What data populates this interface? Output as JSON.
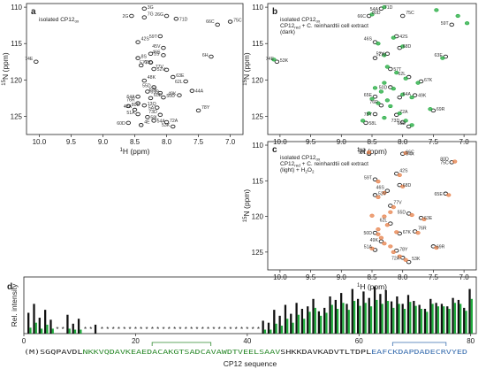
{
  "panels": {
    "a": {
      "letter": "a",
      "legend": [
        {
          "text": "isolated CP12",
          "sub": "ox",
          "color": "#222222"
        }
      ],
      "ppm_labels": [
        "74E",
        "3G",
        "2G",
        "7G",
        "26G",
        "71D",
        "66C",
        "75C",
        "59T",
        "42S",
        "45V",
        "1S",
        "46S",
        "8S",
        "57T",
        "68D",
        "6H",
        "52V",
        "77V",
        "63E",
        "62L",
        "48K",
        "55D",
        "69R",
        "67K",
        "50D",
        "64A",
        "65E",
        "49K",
        "44A",
        "76R",
        "13Q",
        "5A",
        "78Y",
        "51A",
        "58L",
        "73D",
        "72A",
        "60D",
        "4E",
        "53K",
        "54A",
        "43A",
        "80D"
      ]
    },
    "b": {
      "letter": "b",
      "legend": [
        {
          "text": "isolated CP12",
          "sub": "ox",
          "color": "#222222"
        },
        {
          "text": "CP12",
          "sub": "red",
          "tail": " + C. reinhardtii cell extract",
          "color": "#1faa3c"
        },
        {
          "text": "(dark)",
          "color": "#1faa3c"
        }
      ],
      "ppm_labels": [
        "74E",
        "71D",
        "66C",
        "75C",
        "59T",
        "42S",
        "46S",
        "68D",
        "52V",
        "77V",
        "63E",
        "57T",
        "62L",
        "67K",
        "50D",
        "64A",
        "65E",
        "49K",
        "76R",
        "69R",
        "78Y",
        "72A",
        "73D",
        "58L",
        "60D",
        "53K",
        "54A",
        "80D"
      ]
    },
    "c": {
      "letter": "c",
      "legend": [
        {
          "text": "isolated CP12",
          "sub": "ox",
          "color": "#222222"
        },
        {
          "text": "CP12",
          "sub": "red",
          "tail": " + C. reinhardtii cell extract",
          "color": "#e7814b"
        },
        {
          "text": "(light) + H",
          "sub": "2",
          "tail": "O",
          "sub2": "2",
          "color": "#e7814b"
        }
      ],
      "ppm_labels": [
        "71D",
        "66C",
        "75C",
        "42S",
        "59T",
        "68D",
        "46S",
        "52V",
        "65E",
        "77V",
        "55D",
        "63E",
        "62L",
        "67K",
        "50D",
        "76R",
        "49K",
        "69R",
        "51A",
        "78Y",
        "72A",
        "53K",
        "58L",
        "54A",
        "80D"
      ]
    }
  },
  "chart_data": [
    {
      "type": "scatter",
      "panel": "a",
      "xlabel": "1H (ppm)",
      "ylabel": "15N (ppm)",
      "xlim": [
        10.2,
        6.8
      ],
      "ylim": [
        127.5,
        109.5
      ],
      "x_ticks": [
        10.0,
        9.5,
        9.0,
        8.5,
        8.0,
        7.5,
        7.0
      ],
      "y_ticks": [
        110,
        115,
        120,
        125
      ],
      "series": [
        {
          "color": "#222222",
          "points": [
            [
              10.05,
              117.5
            ],
            [
              8.35,
              110.2
            ],
            [
              8.55,
              111.2
            ],
            [
              8.35,
              111.4
            ],
            [
              8.0,
              111.2
            ],
            [
              7.85,
              111.6
            ],
            [
              7.2,
              112.4
            ],
            [
              7.0,
              112.0
            ],
            [
              8.1,
              114.0
            ],
            [
              8.45,
              114.8
            ],
            [
              8.05,
              115.6
            ],
            [
              8.25,
              116.4
            ],
            [
              8.05,
              116.6
            ],
            [
              8.45,
              117.0
            ],
            [
              8.25,
              117.6
            ],
            [
              8.4,
              118.0
            ],
            [
              7.3,
              116.8
            ],
            [
              8.2,
              118.5
            ],
            [
              8.0,
              118.6
            ],
            [
              7.9,
              119.6
            ],
            [
              7.7,
              120.2
            ],
            [
              8.35,
              120.1
            ],
            [
              8.2,
              121.0
            ],
            [
              8.3,
              121.6
            ],
            [
              8.1,
              121.8
            ],
            [
              8.05,
              122.4
            ],
            [
              8.45,
              122.3
            ],
            [
              8.25,
              122.5
            ],
            [
              7.8,
              122.1
            ],
            [
              7.6,
              121.5
            ],
            [
              8.45,
              123.2
            ],
            [
              8.35,
              123.5
            ],
            [
              8.15,
              123.8
            ],
            [
              7.5,
              124.2
            ],
            [
              8.45,
              124.7
            ],
            [
              8.3,
              125.1
            ],
            [
              8.1,
              124.8
            ],
            [
              8.0,
              125.8
            ],
            [
              8.6,
              125.9
            ],
            [
              8.4,
              126.2
            ],
            [
              7.9,
              126.4
            ],
            [
              8.2,
              125.6
            ],
            [
              8.5,
              124.1
            ],
            [
              8.6,
              123.6
            ]
          ]
        }
      ]
    },
    {
      "type": "scatter",
      "panel": "b",
      "xlabel": "1H (ppm)",
      "ylabel": "15N (ppm)",
      "xlim": [
        10.2,
        6.8
      ],
      "ylim": [
        127.5,
        109.5
      ],
      "x_ticks": [
        10.0,
        9.5,
        9.0,
        8.5,
        8.0,
        7.5,
        7.0
      ],
      "y_ticks": [
        110,
        115,
        120,
        125
      ],
      "series": [
        {
          "name": "isolated CP12ox",
          "color": "#222222",
          "points": [
            [
              10.05,
              117.5
            ],
            [
              8.35,
              110.2
            ],
            [
              8.55,
              111.2
            ],
            [
              8.0,
              111.2
            ],
            [
              7.2,
              112.4
            ],
            [
              8.1,
              114.0
            ],
            [
              8.45,
              114.8
            ],
            [
              8.05,
              115.6
            ],
            [
              8.25,
              116.4
            ],
            [
              8.45,
              117.0
            ],
            [
              7.3,
              116.8
            ],
            [
              8.2,
              118.5
            ],
            [
              7.9,
              119.6
            ],
            [
              7.7,
              120.2
            ],
            [
              8.2,
              121.0
            ],
            [
              8.05,
              122.4
            ],
            [
              8.45,
              122.3
            ],
            [
              7.8,
              122.1
            ],
            [
              8.35,
              123.5
            ],
            [
              7.5,
              124.2
            ],
            [
              8.45,
              124.7
            ],
            [
              8.1,
              124.8
            ],
            [
              8.0,
              125.8
            ],
            [
              8.6,
              125.9
            ],
            [
              7.9,
              126.4
            ]
          ]
        },
        {
          "name": "CP12red + C. reinhardtii cell extract (dark)",
          "color": "#1faa3c",
          "points": [
            [
              10.1,
              117.2
            ],
            [
              8.3,
              110.0
            ],
            [
              8.5,
              111.0
            ],
            [
              7.1,
              111.2
            ],
            [
              6.95,
              112.2
            ],
            [
              7.45,
              110.4
            ],
            [
              8.15,
              114.2
            ],
            [
              8.4,
              115.0
            ],
            [
              8.0,
              115.4
            ],
            [
              8.3,
              116.6
            ],
            [
              7.35,
              117.0
            ],
            [
              8.25,
              118.2
            ],
            [
              8.1,
              119.0
            ],
            [
              7.95,
              119.8
            ],
            [
              7.75,
              120.4
            ],
            [
              8.3,
              120.4
            ],
            [
              8.15,
              121.2
            ],
            [
              8.35,
              121.6
            ],
            [
              8.0,
              122.0
            ],
            [
              8.5,
              122.6
            ],
            [
              7.85,
              122.4
            ],
            [
              8.4,
              123.2
            ],
            [
              8.2,
              123.6
            ],
            [
              7.55,
              124.0
            ],
            [
              8.55,
              124.6
            ],
            [
              8.3,
              125.2
            ],
            [
              8.05,
              124.6
            ],
            [
              7.95,
              125.6
            ],
            [
              8.65,
              125.6
            ],
            [
              7.85,
              126.2
            ],
            [
              8.25,
              122.8
            ],
            [
              8.45,
              121.1
            ]
          ]
        }
      ]
    },
    {
      "type": "scatter",
      "panel": "c",
      "xlabel": "1H (ppm)",
      "ylabel": "15N (ppm)",
      "xlim": [
        10.2,
        6.8
      ],
      "ylim": [
        127.5,
        109.5
      ],
      "x_ticks": [
        10.0,
        9.5,
        9.0,
        8.5,
        8.0,
        7.5,
        7.0
      ],
      "y_ticks": [
        110,
        115,
        120,
        125
      ],
      "series": [
        {
          "name": "isolated CP12ox",
          "color": "#222222",
          "points": [
            [
              8.55,
              111.2
            ],
            [
              8.0,
              111.2
            ],
            [
              7.2,
              112.4
            ],
            [
              8.1,
              114.0
            ],
            [
              8.45,
              114.8
            ],
            [
              8.05,
              115.6
            ],
            [
              8.25,
              116.4
            ],
            [
              8.45,
              117.0
            ],
            [
              7.3,
              116.8
            ],
            [
              8.2,
              118.5
            ],
            [
              7.9,
              119.6
            ],
            [
              7.7,
              120.2
            ],
            [
              8.2,
              121.0
            ],
            [
              8.05,
              122.4
            ],
            [
              8.45,
              122.3
            ],
            [
              7.8,
              122.1
            ],
            [
              8.35,
              123.5
            ],
            [
              7.5,
              124.2
            ],
            [
              8.45,
              124.7
            ],
            [
              8.1,
              124.8
            ],
            [
              8.0,
              125.8
            ],
            [
              7.9,
              126.4
            ]
          ]
        },
        {
          "name": "CP12red + C. reinhardtii cell extract (light) + H2O2",
          "color": "#e7814b",
          "points": [
            [
              8.55,
              111.0
            ],
            [
              7.95,
              111.1
            ],
            [
              7.15,
              112.3
            ],
            [
              8.05,
              114.2
            ],
            [
              8.4,
              115.1
            ],
            [
              8.0,
              115.8
            ],
            [
              8.3,
              116.7
            ],
            [
              8.4,
              117.3
            ],
            [
              7.25,
              117.0
            ],
            [
              8.15,
              118.7
            ],
            [
              7.85,
              119.8
            ],
            [
              7.65,
              120.4
            ],
            [
              8.25,
              121.2
            ],
            [
              8.1,
              122.2
            ],
            [
              8.4,
              122.5
            ],
            [
              7.75,
              122.3
            ],
            [
              8.3,
              123.8
            ],
            [
              7.45,
              124.4
            ],
            [
              8.5,
              124.5
            ],
            [
              8.15,
              125.0
            ],
            [
              8.05,
              125.6
            ],
            [
              7.95,
              126.1
            ],
            [
              8.3,
              120.0
            ],
            [
              8.2,
              119.4
            ],
            [
              8.5,
              119.9
            ],
            [
              8.4,
              121.8
            ],
            [
              8.35,
              123.0
            ],
            [
              8.2,
              124.2
            ]
          ]
        }
      ]
    },
    {
      "type": "bar",
      "panel": "d",
      "ylabel": "Rel. intensity",
      "xlabel": "CP12 sequence",
      "x_ticks": [
        0,
        20,
        40,
        60,
        80
      ],
      "xlim": [
        0,
        81
      ],
      "ylim": [
        0,
        1
      ],
      "legend": "none",
      "categories": [
        1,
        2,
        3,
        4,
        5,
        6,
        7,
        8,
        9,
        10,
        11,
        12,
        13,
        14,
        15,
        16,
        17,
        18,
        19,
        20,
        21,
        22,
        23,
        24,
        25,
        26,
        27,
        28,
        29,
        30,
        31,
        32,
        33,
        34,
        35,
        36,
        37,
        38,
        39,
        40,
        41,
        42,
        43,
        44,
        45,
        46,
        47,
        48,
        49,
        50,
        51,
        52,
        53,
        54,
        55,
        56,
        57,
        58,
        59,
        60,
        61,
        62,
        63,
        64,
        65,
        66,
        67,
        68,
        69,
        70,
        71,
        72,
        73,
        74,
        75,
        76,
        77,
        78,
        79,
        80
      ],
      "series": [
        {
          "name": "black",
          "color": "#111111",
          "values": [
            0.42,
            0.6,
            0.32,
            0.48,
            0.28,
            0.0,
            0.0,
            0.38,
            0.2,
            0.3,
            0.0,
            0.0,
            0.18,
            0.0,
            0.0,
            0.0,
            0.0,
            0.0,
            0.0,
            0.0,
            0.0,
            0.0,
            0.0,
            0.0,
            0.0,
            0.0,
            0.0,
            0.0,
            0.0,
            0.0,
            0.0,
            0.0,
            0.0,
            0.0,
            0.0,
            0.0,
            0.0,
            0.0,
            0.0,
            0.0,
            0.0,
            0.0,
            0.26,
            0.22,
            0.48,
            0.36,
            0.58,
            0.4,
            0.62,
            0.5,
            0.55,
            0.7,
            0.45,
            0.52,
            0.75,
            0.68,
            0.82,
            0.6,
            0.9,
            0.7,
            0.85,
            0.72,
            0.95,
            0.8,
            0.88,
            0.65,
            0.75,
            0.6,
            0.78,
            0.66,
            0.58,
            0.5,
            0.7,
            0.62,
            0.6,
            0.55,
            0.72,
            0.68,
            0.52,
            0.9
          ]
        },
        {
          "name": "green",
          "color": "#1faa3c",
          "values": [
            0.12,
            0.22,
            0.1,
            0.18,
            0.1,
            0.0,
            0.0,
            0.1,
            0.08,
            0.08,
            0.0,
            0.0,
            0.0,
            0.0,
            0.0,
            0.0,
            0.0,
            0.0,
            0.0,
            0.0,
            0.0,
            0.0,
            0.0,
            0.0,
            0.0,
            0.0,
            0.0,
            0.0,
            0.0,
            0.0,
            0.0,
            0.0,
            0.0,
            0.0,
            0.0,
            0.0,
            0.0,
            0.0,
            0.0,
            0.0,
            0.0,
            0.0,
            0.08,
            0.08,
            0.2,
            0.16,
            0.3,
            0.22,
            0.38,
            0.3,
            0.44,
            0.52,
            0.36,
            0.42,
            0.58,
            0.5,
            0.62,
            0.48,
            0.66,
            0.56,
            0.62,
            0.55,
            0.68,
            0.6,
            0.66,
            0.52,
            0.6,
            0.5,
            0.64,
            0.56,
            0.5,
            0.44,
            0.6,
            0.55,
            0.55,
            0.5,
            0.62,
            0.6,
            0.46,
            0.7
          ]
        }
      ],
      "missing_marker": "*",
      "sequence_text": "(M)SGQPAVDLNKKVQDAVKEAEDACAKGTSADCAVAWDTVEELSAAVSHKKDAVKADVTLTDPLEAFCKDAPDADECRVYED",
      "sequence_highlights": [
        {
          "start": 9,
          "end": 45,
          "color": "#2e8b2e"
        },
        {
          "start": 63,
          "end": 80,
          "color": "#3a6fb0"
        }
      ]
    }
  ]
}
